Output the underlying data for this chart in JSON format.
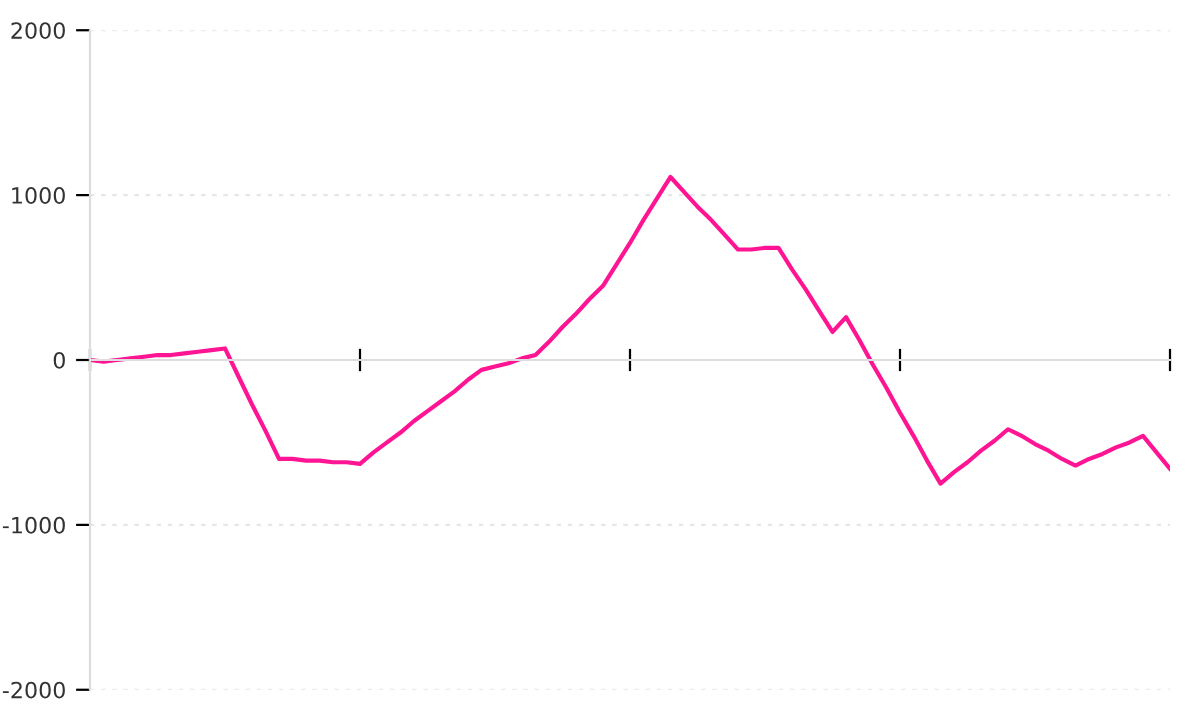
{
  "chart_data": {
    "type": "line",
    "categories": [
      null,
      null,
      null,
      null,
      null,
      null,
      null,
      null,
      null,
      null,
      null,
      null,
      null,
      null,
      null,
      null,
      null,
      null,
      null,
      null,
      null,
      null,
      null,
      null,
      null,
      null,
      null,
      null,
      null,
      null,
      null,
      null,
      null,
      null,
      null,
      null,
      null,
      null,
      null,
      null,
      null,
      null,
      null,
      null,
      null,
      null,
      null,
      null,
      null,
      null,
      null,
      null,
      null,
      null,
      null,
      null,
      null,
      null,
      null,
      null,
      null,
      null,
      null,
      null,
      null,
      null,
      null,
      null,
      null,
      null,
      null,
      null,
      null,
      null,
      null,
      null,
      null,
      null,
      null,
      null,
      null
    ],
    "series": [
      {
        "color": "#ff1493",
        "values": [
          0,
          -10,
          0,
          10,
          20,
          30,
          30,
          40,
          50,
          60,
          70,
          -100,
          -270,
          -430,
          -600,
          -600,
          -610,
          -610,
          -620,
          -620,
          -630,
          -560,
          -500,
          -440,
          -370,
          -310,
          -250,
          -190,
          -120,
          -60,
          -40,
          -20,
          10,
          30,
          110,
          200,
          280,
          370,
          450,
          580,
          710,
          850,
          980,
          1110,
          1020,
          930,
          850,
          760,
          670,
          670,
          680,
          680,
          550,
          430,
          300,
          170,
          260,
          120,
          -30,
          -170,
          -320,
          -460,
          -610,
          -750,
          -680,
          -620,
          -550,
          -490,
          -420,
          -460,
          -510,
          -550,
          -600,
          -640,
          -600,
          -570,
          -530,
          -500,
          -460,
          -560,
          -660
        ]
      }
    ],
    "ylim": [
      -2000,
      2000
    ],
    "yticks": [
      -2000,
      -1000,
      0,
      1000,
      2000
    ],
    "grid": "y",
    "line_style": "solid",
    "marker": "none"
  }
}
